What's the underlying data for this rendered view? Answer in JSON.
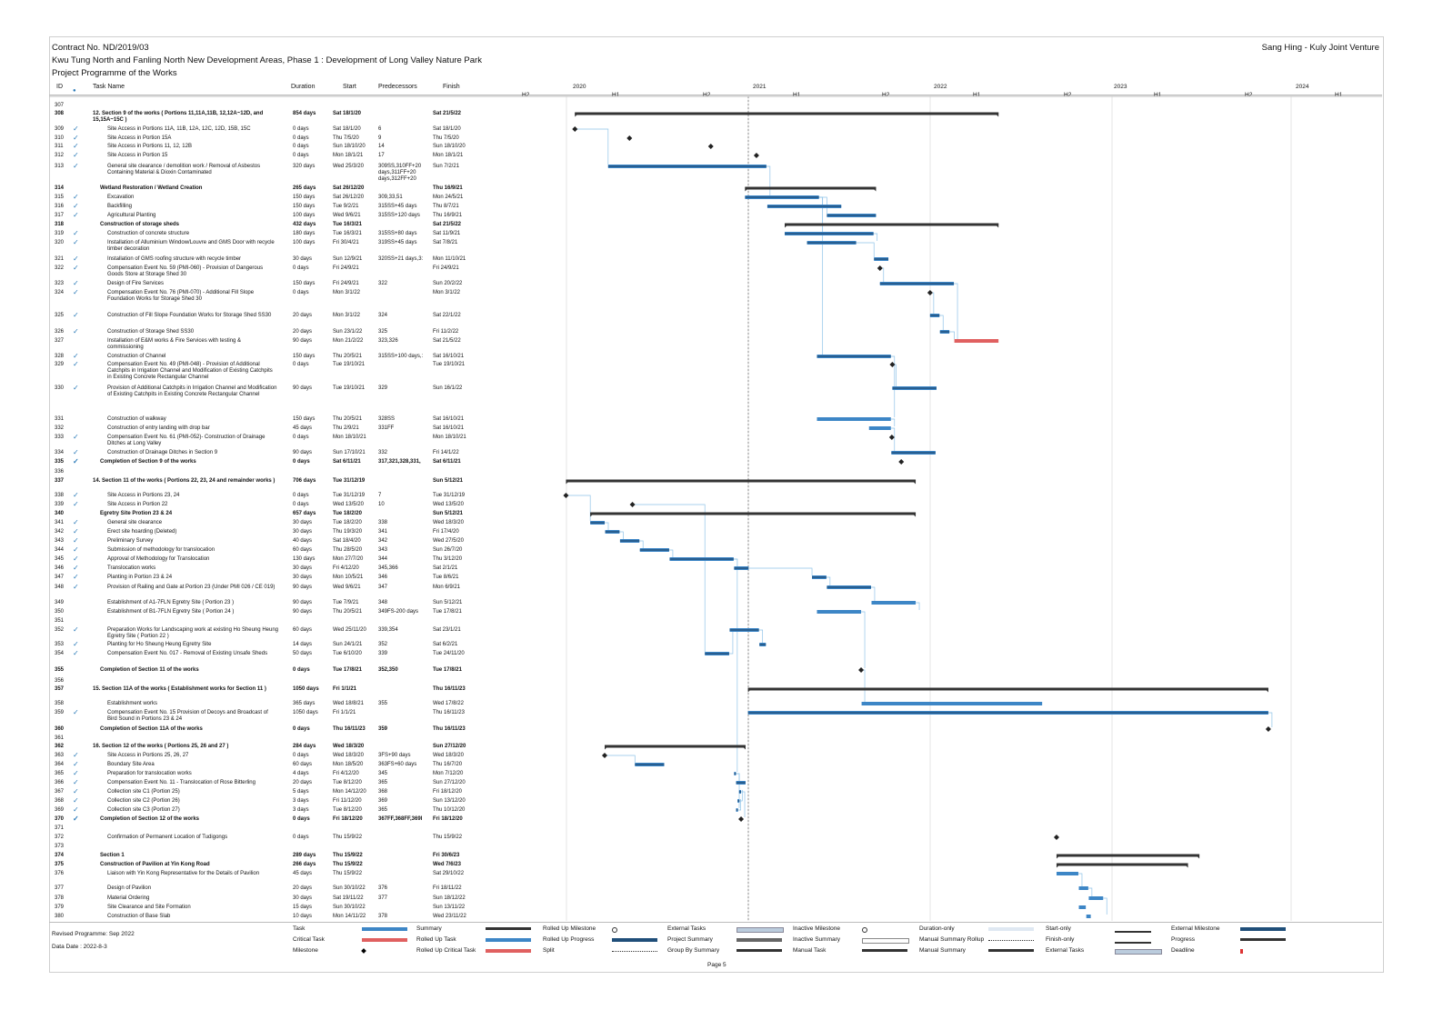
{
  "header": {
    "contract": "Contract No. ND/2019/03",
    "project": "Kwu Tung North and Fanling North New Development Areas, Phase 1 : Development of Long Valley Nature Park",
    "programme": "Project Programme of the Works",
    "company": "Sang Hing - Kuly Joint Venture"
  },
  "columns": {
    "id": "ID",
    "name": "Task Name",
    "duration": "Duration",
    "start": "Start",
    "pred": "Predecessors",
    "finish": "Finish"
  },
  "timeline": [
    "2020",
    "H2",
    "H1",
    "2021",
    "H2",
    "H1",
    "2022",
    "H2",
    "H1",
    "2023",
    "H2",
    "H1",
    "2024",
    "H2",
    "H1"
  ],
  "tasks": [
    {
      "id": "307",
      "name": "",
      "dur": "",
      "start": "",
      "pred": "",
      "finish": ""
    },
    {
      "id": "308",
      "name": "12. Section 9 of the works ( Portions 11,11A,11B, 12,12A~12D, and 15,15A~15C )",
      "dur": "854 days",
      "start": "Sat 18/1/20",
      "pred": "",
      "finish": "Sat 21/5/22",
      "bold": true
    },
    {
      "id": "309",
      "name": "Site Access in Portions 11A, 11B, 12A, 12C, 12D, 15B, 15C",
      "dur": "0 days",
      "start": "Sat 18/1/20",
      "pred": "6",
      "finish": "Sat 18/1/20",
      "ck": true
    },
    {
      "id": "310",
      "name": "Site Access in Portion 15A",
      "dur": "0 days",
      "start": "Thu 7/5/20",
      "pred": "9",
      "finish": "Thu 7/5/20",
      "ck": true
    },
    {
      "id": "311",
      "name": "Site Access in Portions 11, 12, 12B",
      "dur": "0 days",
      "start": "Sun 18/10/20",
      "pred": "14",
      "finish": "Sun 18/10/20",
      "ck": true
    },
    {
      "id": "312",
      "name": "Site Access in Portion 15",
      "dur": "0 days",
      "start": "Mon 18/1/21",
      "pred": "17",
      "finish": "Mon 18/1/21",
      "ck": true
    },
    {
      "id": "313",
      "name": "General site clearance / demolition work / Removal of Asbestos Containing Material & Dioxin Contaminated",
      "dur": "320 days",
      "start": "Wed 25/3/20",
      "pred": "309SS,310FF+20 days,311FF+20 days,312FF+20",
      "finish": "Sun 7/2/21",
      "ck": true
    },
    {
      "id": "314",
      "name": "Wetland Restoration / Wetland Creation",
      "dur": "265 days",
      "start": "Sat 26/12/20",
      "pred": "",
      "finish": "Thu 16/9/21",
      "bold": true
    },
    {
      "id": "315",
      "name": "Excavation",
      "dur": "150 days",
      "start": "Sat 26/12/20",
      "pred": "309,33,51",
      "finish": "Mon 24/5/21",
      "ck": true
    },
    {
      "id": "316",
      "name": "Backfilling",
      "dur": "150 days",
      "start": "Tue 9/2/21",
      "pred": "315SS+45 days",
      "finish": "Thu 8/7/21",
      "ck": true
    },
    {
      "id": "317",
      "name": "Agricultural Planting",
      "dur": "100 days",
      "start": "Wed 9/6/21",
      "pred": "315SS+120 days",
      "finish": "Thu 16/9/21",
      "ck": true
    },
    {
      "id": "318",
      "name": "Construction of storage sheds",
      "dur": "432 days",
      "start": "Tue 16/3/21",
      "pred": "",
      "finish": "Sat 21/5/22",
      "bold": true
    },
    {
      "id": "319",
      "name": "Construction of concrete structure",
      "dur": "180 days",
      "start": "Tue 16/3/21",
      "pred": "315SS+80 days",
      "finish": "Sat 11/9/21",
      "ck": true
    },
    {
      "id": "320",
      "name": "Installation of Alluminium Window/Louvre and GMS Door with recycle timber decoration",
      "dur": "100 days",
      "start": "Fri 30/4/21",
      "pred": "319SS+45 days",
      "finish": "Sat 7/8/21",
      "ck": true
    },
    {
      "id": "321",
      "name": "Installation of GMS roofing structure with recycle timber",
      "dur": "30 days",
      "start": "Sun 12/9/21",
      "pred": "320SS+21 days,3:",
      "finish": "Mon 11/10/21",
      "ck": true
    },
    {
      "id": "322",
      "name": "Compensation Event No. 59 (PMI-060) - Provision of Dangerous Goods Store at Storage Shed 30",
      "dur": "0 days",
      "start": "Fri 24/9/21",
      "pred": "",
      "finish": "Fri 24/9/21",
      "ck": true
    },
    {
      "id": "323",
      "name": "Design of Fire Services",
      "dur": "150 days",
      "start": "Fri 24/9/21",
      "pred": "322",
      "finish": "Sun 20/2/22",
      "ck": true
    },
    {
      "id": "324",
      "name": "Compensation Event No. 76 (PMI-070) - Additional Fill Slope Foundation Works for Storage Shed 30",
      "dur": "0 days",
      "start": "Mon 3/1/22",
      "pred": "",
      "finish": "Mon 3/1/22",
      "ck": true
    },
    {
      "id": "325",
      "name": "Construction of Fill Slope Foundation Works for Storage Shed SS30",
      "dur": "20 days",
      "start": "Mon 3/1/22",
      "pred": "324",
      "finish": "Sat 22/1/22",
      "ck": true
    },
    {
      "id": "326",
      "name": "Construction of Storage Shed SS30",
      "dur": "20 days",
      "start": "Sun 23/1/22",
      "pred": "325",
      "finish": "Fri 11/2/22",
      "ck": true
    },
    {
      "id": "327",
      "name": "Installation of E&M works & Fire Services with testing & commissioning",
      "dur": "90 days",
      "start": "Mon 21/2/22",
      "pred": "323,326",
      "finish": "Sat 21/5/22"
    },
    {
      "id": "328",
      "name": "Construction of Channel",
      "dur": "150 days",
      "start": "Thu 20/5/21",
      "pred": "315SS+100 days,:",
      "finish": "Sat 16/10/21",
      "ck": true
    },
    {
      "id": "329",
      "name": "Compensation Event No. 49 (PMI-048) - Provision of Additional Catchpits in Irrigation Channel and Modification of Existing Catchpits in Existing Concrete Rectangular Channel",
      "dur": "0 days",
      "start": "Tue 19/10/21",
      "pred": "",
      "finish": "Tue 19/10/21",
      "ck": true
    },
    {
      "id": "330",
      "name": "Provision of Additional Catchpits in Irrigation Channel and Modification of Existing Catchpits in Existing Concrete Rectangular Channel",
      "dur": "90 days",
      "start": "Tue 19/10/21",
      "pred": "329",
      "finish": "Sun 16/1/22",
      "ck": true
    },
    {
      "id": "331",
      "name": "Construction of walkway",
      "dur": "150 days",
      "start": "Thu 20/5/21",
      "pred": "328SS",
      "finish": "Sat 16/10/21"
    },
    {
      "id": "332",
      "name": "Construction of entry landing with drop bar",
      "dur": "45 days",
      "start": "Thu 2/9/21",
      "pred": "331FF",
      "finish": "Sat 16/10/21"
    },
    {
      "id": "333",
      "name": "Compensation Event No. 61 (PMI-052)- Construction of Drainage Ditches at Long Valley",
      "dur": "0 days",
      "start": "Mon 18/10/21",
      "pred": "",
      "finish": "Mon 18/10/21",
      "ck": true
    },
    {
      "id": "334",
      "name": "Construction of Drainage Ditches in Section 9",
      "dur": "90 days",
      "start": "Sun 17/10/21",
      "pred": "332",
      "finish": "Fri 14/1/22",
      "ck": true
    },
    {
      "id": "335",
      "name": "Completion of Section 9 of the works",
      "dur": "0 days",
      "start": "Sat 6/11/21",
      "pred": "317,321,328,331,",
      "finish": "Sat 6/11/21",
      "bold": true,
      "ck": true
    },
    {
      "id": "336",
      "name": "",
      "dur": "",
      "start": "",
      "pred": "",
      "finish": ""
    },
    {
      "id": "337",
      "name": "14. Section 11 of the works ( Portions 22, 23, 24 and remainder works )",
      "dur": "706 days",
      "start": "Tue 31/12/19",
      "pred": "",
      "finish": "Sun 5/12/21",
      "bold": true
    },
    {
      "id": "338",
      "name": "Site Access in Portions 23, 24",
      "dur": "0 days",
      "start": "Tue 31/12/19",
      "pred": "7",
      "finish": "Tue 31/12/19",
      "ck": true
    },
    {
      "id": "339",
      "name": "Site Access in Portion 22",
      "dur": "0 days",
      "start": "Wed 13/5/20",
      "pred": "10",
      "finish": "Wed 13/5/20",
      "ck": true
    },
    {
      "id": "340",
      "name": "Egretry Site Protion 23 & 24",
      "dur": "657 days",
      "start": "Tue 18/2/20",
      "pred": "",
      "finish": "Sun 5/12/21",
      "bold": true
    },
    {
      "id": "341",
      "name": "General site clearance",
      "dur": "30 days",
      "start": "Tue 18/2/20",
      "pred": "338",
      "finish": "Wed 18/3/20",
      "ck": true
    },
    {
      "id": "342",
      "name": "Erect site hoarding (Deleted)",
      "dur": "30 days",
      "start": "Thu 19/3/20",
      "pred": "341",
      "finish": "Fri 17/4/20",
      "ck": true
    },
    {
      "id": "343",
      "name": "Preliminary Survey",
      "dur": "40 days",
      "start": "Sat 18/4/20",
      "pred": "342",
      "finish": "Wed 27/5/20",
      "ck": true
    },
    {
      "id": "344",
      "name": "Submission of methodology for translocation",
      "dur": "60 days",
      "start": "Thu 28/5/20",
      "pred": "343",
      "finish": "Sun 26/7/20",
      "ck": true
    },
    {
      "id": "345",
      "name": "Approval of Methodology for Translocation",
      "dur": "130 days",
      "start": "Mon 27/7/20",
      "pred": "344",
      "finish": "Thu 3/12/20",
      "ck": true
    },
    {
      "id": "346",
      "name": "Translocation works",
      "dur": "30 days",
      "start": "Fri 4/12/20",
      "pred": "345,366",
      "finish": "Sat 2/1/21",
      "ck": true
    },
    {
      "id": "347",
      "name": "Planting in Portion 23 & 24",
      "dur": "30 days",
      "start": "Mon 10/5/21",
      "pred": "346",
      "finish": "Tue 8/6/21",
      "ck": true
    },
    {
      "id": "348",
      "name": "Provision of Railing and Gate at Portion 23 (Under PMI 026 / CE 019)",
      "dur": "90 days",
      "start": "Wed 9/6/21",
      "pred": "347",
      "finish": "Mon 6/9/21",
      "ck": true
    },
    {
      "id": "349",
      "name": "Establishment of A1-7FLN Egretry Site ( Portion 23 )",
      "dur": "90 days",
      "start": "Tue 7/9/21",
      "pred": "348",
      "finish": "Sun 5/12/21"
    },
    {
      "id": "350",
      "name": "Establishment of B1-7FLN Egretry Site ( Portion 24 )",
      "dur": "90 days",
      "start": "Thu 20/5/21",
      "pred": "349FS-200 days",
      "finish": "Tue 17/8/21"
    },
    {
      "id": "351",
      "name": "",
      "dur": "",
      "start": "",
      "pred": "",
      "finish": ""
    },
    {
      "id": "352",
      "name": "Preparation Works for Landscaping work at existing Ho Sheung Heung Egretry Site ( Portion 22 )",
      "dur": "60 days",
      "start": "Wed 25/11/20",
      "pred": "339,354",
      "finish": "Sat 23/1/21",
      "ck": true
    },
    {
      "id": "353",
      "name": "Planting for Ho Sheung Heung Egretry Site",
      "dur": "14 days",
      "start": "Sun 24/1/21",
      "pred": "352",
      "finish": "Sat 6/2/21",
      "ck": true
    },
    {
      "id": "354",
      "name": "Compensation Event No. 017 - Removal of Existing Unsafe Sheds",
      "dur": "50 days",
      "start": "Tue 6/10/20",
      "pred": "339",
      "finish": "Tue 24/11/20",
      "ck": true
    },
    {
      "id": "355",
      "name": "Completion of Section 11 of the works",
      "dur": "0 days",
      "start": "Tue 17/8/21",
      "pred": "352,350",
      "finish": "Tue 17/8/21",
      "bold": true
    },
    {
      "id": "356",
      "name": "",
      "dur": "",
      "start": "",
      "pred": "",
      "finish": ""
    },
    {
      "id": "357",
      "name": "15. Section 11A of the works ( Establishment works for Section 11 )",
      "dur": "1050 days",
      "start": "Fri 1/1/21",
      "pred": "",
      "finish": "Thu 16/11/23",
      "bold": true
    },
    {
      "id": "358",
      "name": "Establishment works",
      "dur": "365 days",
      "start": "Wed 18/8/21",
      "pred": "355",
      "finish": "Wed 17/8/22"
    },
    {
      "id": "359",
      "name": "Compensation Event No. 15 Provision of Decoys and Broadcast of Bird Sound in Portions 23 & 24",
      "dur": "1050 days",
      "start": "Fri 1/1/21",
      "pred": "",
      "finish": "Thu 16/11/23",
      "ck": true
    },
    {
      "id": "360",
      "name": "Completion of Section 11A of the works",
      "dur": "0 days",
      "start": "Thu 16/11/23",
      "pred": "359",
      "finish": "Thu 16/11/23",
      "bold": true
    },
    {
      "id": "361",
      "name": "",
      "dur": "",
      "start": "",
      "pred": "",
      "finish": ""
    },
    {
      "id": "362",
      "name": "16. Section 12 of the works ( Portions 25, 26 and 27 )",
      "dur": "284 days",
      "start": "Wed 18/3/20",
      "pred": "",
      "finish": "Sun 27/12/20",
      "bold": true
    },
    {
      "id": "363",
      "name": "Site Access in Portions 25, 26, 27",
      "dur": "0 days",
      "start": "Wed 18/3/20",
      "pred": "3FS+90 days",
      "finish": "Wed 18/3/20",
      "ck": true
    },
    {
      "id": "364",
      "name": "Boundary Site Area",
      "dur": "60 days",
      "start": "Mon 18/5/20",
      "pred": "363FS+60 days",
      "finish": "Thu 16/7/20",
      "ck": true
    },
    {
      "id": "365",
      "name": "Preparation for translocation works",
      "dur": "4 days",
      "start": "Fri 4/12/20",
      "pred": "345",
      "finish": "Mon 7/12/20",
      "ck": true
    },
    {
      "id": "366",
      "name": "Compensation Event No. 11 - Translocation of Rose Bitterling",
      "dur": "20 days",
      "start": "Tue 8/12/20",
      "pred": "365",
      "finish": "Sun 27/12/20",
      "ck": true
    },
    {
      "id": "367",
      "name": "Collection site C1 (Portion 25)",
      "dur": "5 days",
      "start": "Mon 14/12/20",
      "pred": "368",
      "finish": "Fri 18/12/20",
      "ck": true
    },
    {
      "id": "368",
      "name": "Collection site C2 (Portion 26)",
      "dur": "3 days",
      "start": "Fri 11/12/20",
      "pred": "369",
      "finish": "Sun 13/12/20",
      "ck": true
    },
    {
      "id": "369",
      "name": "Collection site C3 (Portion 27)",
      "dur": "3 days",
      "start": "Tue 8/12/20",
      "pred": "365",
      "finish": "Thu 10/12/20",
      "ck": true
    },
    {
      "id": "370",
      "name": "Completion of Section 12 of the works",
      "dur": "0 days",
      "start": "Fri 18/12/20",
      "pred": "367FF,368FF,369I",
      "finish": "Fri 18/12/20",
      "bold": true,
      "ck": true
    },
    {
      "id": "371",
      "name": "",
      "dur": "",
      "start": "",
      "pred": "",
      "finish": ""
    },
    {
      "id": "372",
      "name": "Confirmation of Permanent Location of Tudigongs",
      "dur": "0 days",
      "start": "Thu 15/9/22",
      "pred": "",
      "finish": "Thu 15/9/22"
    },
    {
      "id": "373",
      "name": "",
      "dur": "",
      "start": "",
      "pred": "",
      "finish": ""
    },
    {
      "id": "374",
      "name": "Section 1",
      "dur": "289 days",
      "start": "Thu 15/9/22",
      "pred": "",
      "finish": "Fri 30/6/23",
      "bold": true
    },
    {
      "id": "375",
      "name": "Construction of Pavilion at Yin Kong Road",
      "dur": "266 days",
      "start": "Thu 15/9/22",
      "pred": "",
      "finish": "Wed 7/6/23",
      "bold": true
    },
    {
      "id": "376",
      "name": "Liaison with Yin Kong Representative for the Details of Pavilion",
      "dur": "45 days",
      "start": "Thu 15/9/22",
      "pred": "",
      "finish": "Sat 29/10/22"
    },
    {
      "id": "377",
      "name": "Design of Pavilion",
      "dur": "20 days",
      "start": "Sun 30/10/22",
      "pred": "376",
      "finish": "Fri 18/11/22"
    },
    {
      "id": "378",
      "name": "Material Ordering",
      "dur": "30 days",
      "start": "Sat 19/11/22",
      "pred": "377",
      "finish": "Sun 18/12/22"
    },
    {
      "id": "379",
      "name": "Site Clearance and Site Formation",
      "dur": "15 days",
      "start": "Sun 30/10/22",
      "pred": "",
      "finish": "Sun 13/11/22"
    },
    {
      "id": "380",
      "name": "Construction of Base Slab",
      "dur": "10 days",
      "start": "Mon 14/11/22",
      "pred": "378",
      "finish": "Wed 23/11/22"
    }
  ],
  "legend": [
    {
      "label": "Task",
      "sym": "task"
    },
    {
      "label": "Critical Task",
      "sym": "crit"
    },
    {
      "label": "Milestone",
      "sym": "mile"
    },
    {
      "label": "Summary",
      "sym": "sum"
    },
    {
      "label": "Rolled Up Task",
      "sym": "task"
    },
    {
      "label": "Rolled Up Critical Task",
      "sym": "crit"
    },
    {
      "label": "Rolled Up Milestone",
      "sym": "omile"
    },
    {
      "label": "Rolled Up Progress",
      "sym": "prog"
    },
    {
      "label": "Split",
      "sym": "dots"
    },
    {
      "label": "External Tasks",
      "sym": "ext"
    },
    {
      "label": "Project Summary",
      "sym": "psum"
    },
    {
      "label": "Group By Summary",
      "sym": "sum"
    },
    {
      "label": "Inactive Milestone",
      "sym": "omile"
    },
    {
      "label": "Inactive Summary",
      "sym": "isum"
    },
    {
      "label": "Manual Task",
      "sym": "sum"
    },
    {
      "label": "Duration-only",
      "sym": "light"
    },
    {
      "label": "Manual Summary Rollup",
      "sym": "dots"
    },
    {
      "label": "Manual Summary",
      "sym": "sum"
    },
    {
      "label": "Start-only",
      "sym": "bracket"
    },
    {
      "label": "Finish-only",
      "sym": "bracket"
    },
    {
      "label": "External Tasks",
      "sym": "ext"
    },
    {
      "label": "External Milestone",
      "sym": "prog"
    },
    {
      "label": "Progress",
      "sym": "sum"
    },
    {
      "label": "Deadline",
      "sym": "dead"
    }
  ],
  "footer": {
    "revised": "Revised Programme: Sep 2022",
    "date": "Data Date : 2022-8-3",
    "page": "Page 5"
  },
  "colors": {
    "task": "#3d86c6",
    "progress": "#1f4e79",
    "critical": "#e06060",
    "summary": "#333333",
    "link": "#8fc3e8",
    "milestone": "#222222"
  }
}
